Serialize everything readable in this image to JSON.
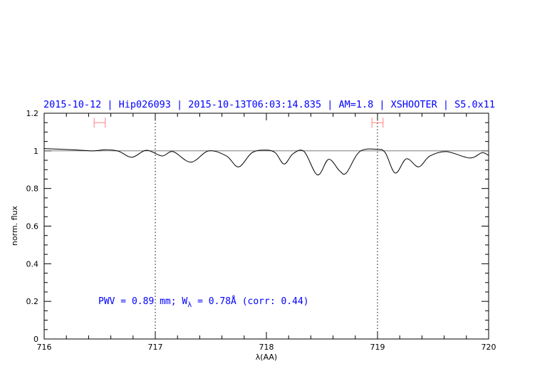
{
  "chart_data": {
    "type": "line",
    "title": "2015-10-12 | Hip026093 | 2015-10-13T06:03:14.835 | AM=1.8 | XSHOOTER | S5.0x11",
    "xlabel": "λ(AA)",
    "ylabel": "norm. flux",
    "xlim": [
      716,
      720
    ],
    "ylim": [
      0,
      1.2
    ],
    "xticks": [
      "716",
      "717",
      "718",
      "719",
      "720"
    ],
    "yticks": [
      "0",
      "0.2",
      "0.4",
      "0.6",
      "0.8",
      "1",
      "1.2"
    ],
    "grid": false,
    "reference_line": 1.0,
    "vlines": [
      717,
      719
    ],
    "annotation": {
      "prefix": "PWV = 0.89 mm; W",
      "sub": "λ",
      "suffix": " = 0.78Å (corr: 0.44)"
    },
    "range_markers": [
      {
        "center": 716.5,
        "halfwidth": 0.05,
        "y": 1.15
      },
      {
        "center": 719.0,
        "halfwidth": 0.05,
        "y": 1.15
      }
    ],
    "colors": {
      "title": "#0000ff",
      "annotation": "#0000ff",
      "markers": "#ff8080",
      "reference": "#e06060",
      "spectrum": "#000000"
    },
    "series": [
      {
        "x": [
          716.0,
          716.25,
          716.43,
          716.56,
          716.67,
          716.79,
          716.92,
          717.06,
          717.16,
          717.32,
          717.48,
          717.64,
          717.75,
          717.87,
          717.99,
          718.08,
          718.16,
          718.24,
          718.34,
          718.46,
          718.56,
          718.66,
          718.72,
          718.84,
          719.0,
          719.07,
          719.16,
          719.26,
          719.37,
          719.47,
          719.62,
          719.83,
          719.94,
          720.0
        ],
        "y": [
          1.012,
          1.006,
          1.0,
          1.006,
          0.998,
          0.966,
          1.003,
          0.973,
          0.996,
          0.94,
          1.0,
          0.973,
          0.915,
          0.99,
          1.004,
          0.99,
          0.93,
          0.985,
          0.996,
          0.872,
          0.955,
          0.893,
          0.883,
          0.996,
          1.008,
          0.99,
          0.882,
          0.958,
          0.915,
          0.972,
          0.996,
          0.962,
          0.99,
          0.975
        ]
      }
    ]
  }
}
